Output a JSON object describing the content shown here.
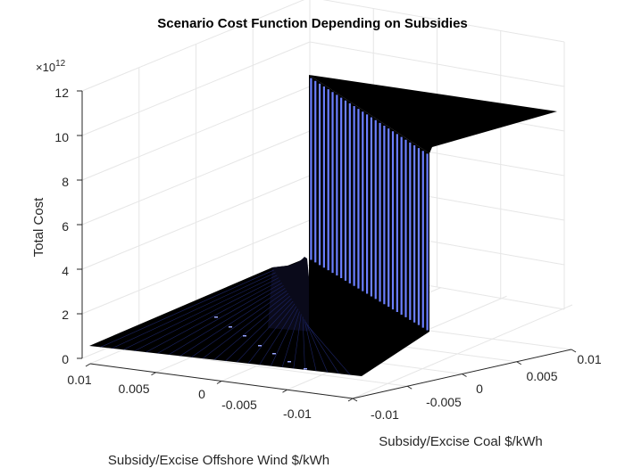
{
  "chart_data": {
    "type": "surface",
    "title": "Scenario Cost Function Depending on Subsidies",
    "xlabel": "Subsidy/Excise Offshore Wind $/kWh",
    "ylabel": "Subsidy/Excise Coal $/kWh",
    "zlabel": "Total Cost",
    "z_exponent_label": "×10",
    "z_exponent_value": "12",
    "x_ticks": [
      "0.01",
      "0.005",
      "0",
      "-0.005",
      "-0.01"
    ],
    "y_ticks": [
      "-0.01",
      "-0.005",
      "0",
      "0.005",
      "0.01"
    ],
    "z_ticks": [
      "0",
      "2",
      "4",
      "6",
      "8",
      "10",
      "12"
    ],
    "xlim": [
      -0.012,
      0.012
    ],
    "ylim": [
      -0.012,
      0.012
    ],
    "zlim": [
      0,
      12
    ],
    "grid": true,
    "surface_color": "#000000",
    "stripe_color": "#6b7fff",
    "regions": [
      {
        "description_level": "low plateau",
        "wind_range": [
          -0.012,
          0.012
        ],
        "coal_range": [
          -0.012,
          0.006
        ],
        "total_cost_e12": [
          0.5,
          4.1
        ]
      },
      {
        "description_level": "high plateau",
        "wind_range": [
          -0.012,
          -0.002
        ],
        "coal_range": [
          0.006,
          0.012
        ],
        "total_cost_e12": [
          11.0,
          12.7
        ]
      }
    ]
  }
}
